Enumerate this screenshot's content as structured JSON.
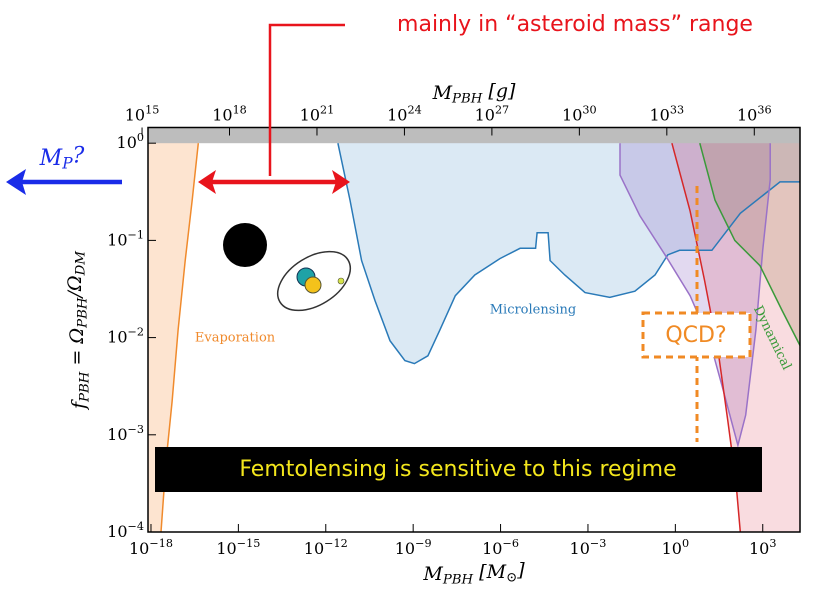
{
  "chart_data": {
    "type": "region",
    "log_scale": true,
    "xlim": [
      7.9e-19,
      19000.0
    ],
    "ylim": [
      0.0001,
      1.45
    ],
    "x2lim": [
      1600000000000000.0,
      3.7e+37
    ],
    "excluded_above": 1,
    "xlabel": "M_{PBH} [M_{⊙}]",
    "x2label": "M_{PBH} [g]",
    "ylabel": "f_{PBH} = Ω_{PBH}/Ω_{DM}",
    "xticks": [
      {
        "value": 1e-18,
        "label": "10^{−18}"
      },
      {
        "value": 1e-15,
        "label": "10^{−15}"
      },
      {
        "value": 1e-12,
        "label": "10^{−12}"
      },
      {
        "value": 1e-09,
        "label": "10^{−9}"
      },
      {
        "value": 1e-06,
        "label": "10^{−6}"
      },
      {
        "value": 0.001,
        "label": "10^{−3}"
      },
      {
        "value": 1,
        "label": "10^{0}"
      },
      {
        "value": 1000,
        "label": "10^{3}"
      }
    ],
    "x2ticks": [
      {
        "value": 1000000000000000.0,
        "label": "10^{15}"
      },
      {
        "value": 1e+18,
        "label": "10^{18}"
      },
      {
        "value": 1e+21,
        "label": "10^{21}"
      },
      {
        "value": 1e+24,
        "label": "10^{24}"
      },
      {
        "value": 1e+27,
        "label": "10^{27}"
      },
      {
        "value": 1e+30,
        "label": "10^{30}"
      },
      {
        "value": 1e+33,
        "label": "10^{33}"
      },
      {
        "value": 1e+36,
        "label": "10^{36}"
      }
    ],
    "yticks": [
      {
        "value": 1,
        "label": "10^{0}"
      },
      {
        "value": 0.1,
        "label": "10^{−1}"
      },
      {
        "value": 0.01,
        "label": "10^{−2}"
      },
      {
        "value": 0.001,
        "label": "10^{−3}"
      },
      {
        "value": 0.0001,
        "label": "10^{−4}"
      }
    ],
    "series": [
      {
        "name": "Evaporation",
        "color": "#f08a2c",
        "fill": "#fde4d0",
        "fill_to": "left",
        "x": [
          4.2e-17,
          2.6e-17,
          1.5e-17,
          8.5e-18,
          5.3e-18,
          3.3e-18,
          2.2e-18
        ],
        "values": [
          1,
          0.26,
          0.062,
          0.012,
          0.0022,
          0.00054,
          0.0001
        ]
      },
      {
        "name": "Microlensing",
        "color": "#2a7ab8",
        "fill": "#dbe9f4",
        "fill_to": "top",
        "x": [
          2.6e-12,
          6.8e-12,
          1.7e-11,
          4.9e-11,
          1.6e-10,
          5.2e-10,
          1.1e-09,
          3.2e-09,
          8.3e-09,
          2.8e-08,
          1.3e-07,
          9.5e-07,
          4.7e-06,
          1.6e-05,
          1.8e-05,
          4.3e-05,
          5e-05,
          0.00016,
          0.00079,
          0.0056,
          0.041,
          0.2,
          0.55,
          1.4,
          18,
          170,
          3900,
          19000
        ],
        "values": [
          1,
          0.26,
          0.062,
          0.024,
          0.0093,
          0.0058,
          0.0054,
          0.0065,
          0.012,
          0.027,
          0.044,
          0.065,
          0.083,
          0.083,
          0.12,
          0.12,
          0.062,
          0.044,
          0.029,
          0.026,
          0.03,
          0.044,
          0.071,
          0.079,
          0.079,
          0.19,
          0.4,
          0.4
        ]
      },
      {
        "color": "#9a72c8",
        "fill": "rgba(150,120,200,0.28)",
        "fill_to": "closed",
        "x": [
          0.0126,
          0.0126,
          0.06,
          0.44,
          3.2,
          15,
          40,
          140,
          260,
          580,
          1000,
          1800,
          1800
        ],
        "values": [
          1,
          0.47,
          0.18,
          0.071,
          0.027,
          0.0093,
          0.0032,
          0.00078,
          0.0016,
          0.012,
          0.079,
          0.42,
          1
        ]
      },
      {
        "color": "#d62728",
        "fill": "rgba(225,80,100,0.2)",
        "fill_to": "right",
        "x": [
          0.76,
          3.2,
          10,
          29,
          63,
          120,
          170
        ],
        "values": [
          1,
          0.2,
          0.039,
          0.0074,
          0.0014,
          0.00033,
          0.0001
        ]
      },
      {
        "name": "Dynamical",
        "color": "#3a9a3a",
        "fill": "rgba(150,120,70,0.22)",
        "fill_to": "right",
        "x": [
          6.9,
          23,
          110,
          800,
          4600,
          19000
        ],
        "values": [
          1,
          0.26,
          0.1,
          0.055,
          0.019,
          0.0083
        ]
      }
    ],
    "annotations": {
      "range": "mainly in “asteroid mass” range",
      "planck": "M_{P}?",
      "qcd": "QCD?",
      "femto": "Femtolensing is sensitive to this regime"
    }
  }
}
